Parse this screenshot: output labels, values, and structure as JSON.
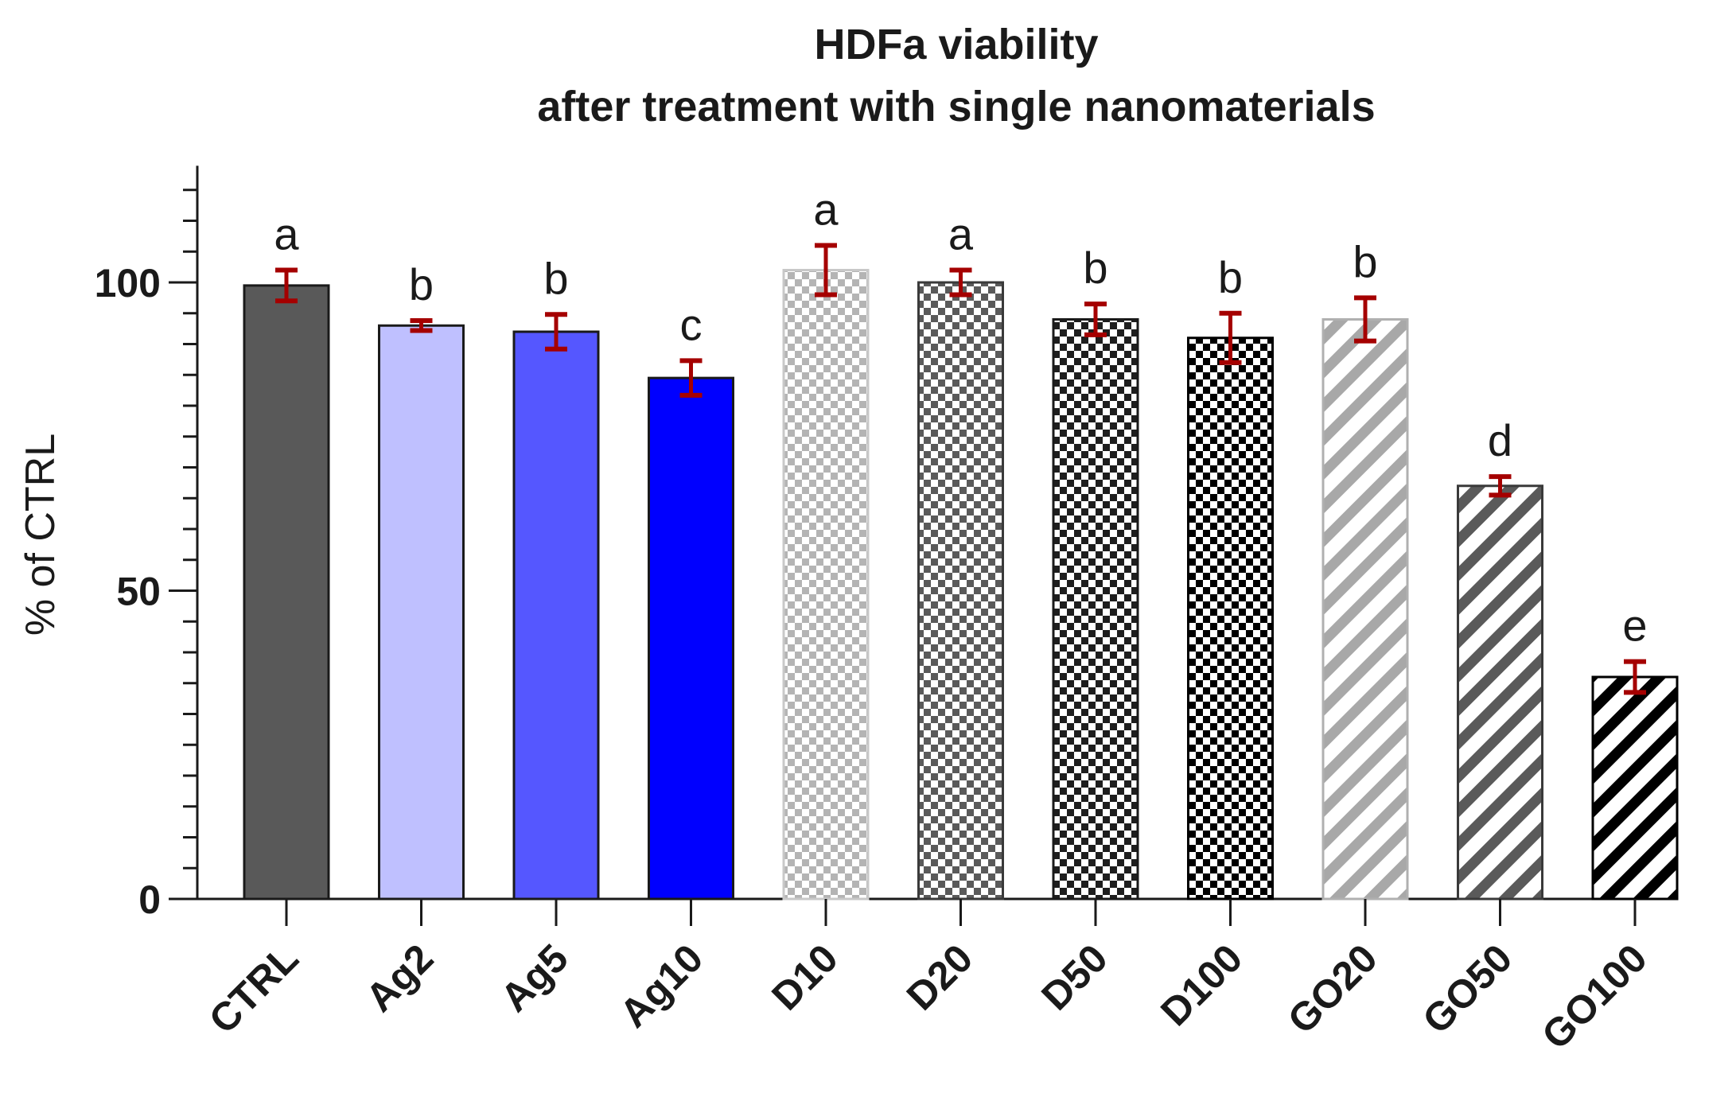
{
  "chart_data": {
    "type": "bar",
    "title": "HDFa viability",
    "subtitle": "after treatment with single nanomaterials",
    "xlabel": "",
    "ylabel": "% of CTRL",
    "ylim": [
      0,
      120
    ],
    "yticks": [
      0,
      50,
      100
    ],
    "ytick_labels": [
      "0",
      "50",
      "100"
    ],
    "categories": [
      "CTRL",
      "Ag2",
      "Ag5",
      "Ag10",
      "D10",
      "D20",
      "D50",
      "D100",
      "GO20",
      "GO50",
      "GO100"
    ],
    "values": [
      99.5,
      93.0,
      92.0,
      84.5,
      102.0,
      100.0,
      94.0,
      91.0,
      94.0,
      67.0,
      36.0
    ],
    "errors": [
      2.5,
      0.8,
      2.8,
      2.8,
      4.0,
      2.0,
      2.5,
      4.0,
      3.5,
      1.5,
      2.5
    ],
    "significance_letters": [
      "a",
      "b",
      "b",
      "c",
      "a",
      "a",
      "b",
      "b",
      "b",
      "d",
      "e"
    ],
    "bar_styles": [
      {
        "fill": "#595959",
        "pattern": "solid",
        "stroke": "#1a1a1a"
      },
      {
        "fill": "#bfc0ff",
        "pattern": "solid",
        "stroke": "#1a1a1a"
      },
      {
        "fill": "#5557ff",
        "pattern": "solid",
        "stroke": "#1a1a1a"
      },
      {
        "fill": "#0000ff",
        "pattern": "solid",
        "stroke": "#1a1a1a"
      },
      {
        "fill": "#b4b4b4",
        "pattern": "checker",
        "stroke": "#c8c8c8"
      },
      {
        "fill": "#5a5a5a",
        "pattern": "checker",
        "stroke": "#3a3a3a"
      },
      {
        "fill": "#1e1e1e",
        "pattern": "checker",
        "stroke": "#1a1a1a"
      },
      {
        "fill": "#000000",
        "pattern": "checker",
        "stroke": "#000000"
      },
      {
        "fill": "#a8a8a8",
        "pattern": "stripe",
        "stroke": "#b0b0b0"
      },
      {
        "fill": "#5a5a5a",
        "pattern": "stripe",
        "stroke": "#3a3a3a"
      },
      {
        "fill": "#000000",
        "pattern": "stripe",
        "stroke": "#000000"
      }
    ],
    "error_bar_color": "#a50000",
    "axis_color": "#1a1a1a",
    "grid": false,
    "legend": "none"
  }
}
